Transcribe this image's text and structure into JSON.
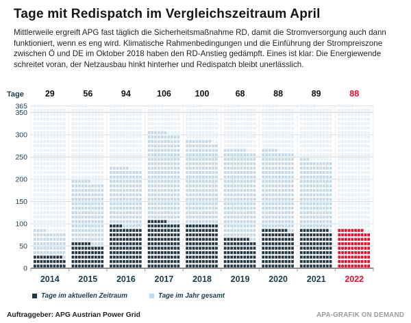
{
  "header": {
    "title": "Tage mit Redispatch im Vergleichszeitraum April"
  },
  "intro": "Mittlerweile ergreift APG fast täglich die Sicherheitsmaßnahme RD, damit die Stromversorgung auch dann funktioniert, wenn es eng wird. Klimatische Rahmenbedingungen und die Einführung der Strompreiszone zwischen Ö und DE im Oktober 2018 haben den RD-Anstieg gedämpft. Eines ist klar: Die Energiewende schreitet voran, der Netzausbau hinkt hinterher und Redispatch bleibt unerlässlich.",
  "chart_data": {
    "type": "waffle",
    "ylabel": "Tage",
    "categories": [
      "2014",
      "2015",
      "2016",
      "2017",
      "2018",
      "2019",
      "2020",
      "2021",
      "2022"
    ],
    "series": [
      {
        "name": "Tage im aktuellen Zeitraum",
        "values": [
          29,
          56,
          94,
          106,
          100,
          68,
          88,
          89,
          88
        ]
      },
      {
        "name": "Tage im Jahr gesamt",
        "values": [
          84,
          196,
          226,
          306,
          288,
          267,
          265,
          243,
          null
        ]
      }
    ],
    "days_per_square": 1,
    "squares_per_row": 10,
    "ymax": 365,
    "yticks": [
      0,
      50,
      100,
      150,
      200,
      250,
      300,
      350,
      365
    ],
    "highlight_index": 8,
    "colors": {
      "period": "#223744",
      "period_highlight": "#e4102d",
      "year_total": "#c3d9e8",
      "background_days": "#e9f0f6",
      "grid": "#dcdcdc",
      "column_separator": "#ececec",
      "baseline": "#4a4a4a",
      "axis_text": "#1c3c4c",
      "value_text": "#111111",
      "highlight_text": "#e4102d",
      "tick": "#999999"
    }
  },
  "legend": [
    {
      "label": "Tage im aktuellen Zeitraum",
      "color_key": "period"
    },
    {
      "label": "Tage im Jahr gesamt",
      "color_key": "year_total"
    }
  ],
  "footer": {
    "client": "Auftraggeber: APG Austrian Power Grid",
    "credit": "APA-GRAFIK ON DEMAND"
  }
}
